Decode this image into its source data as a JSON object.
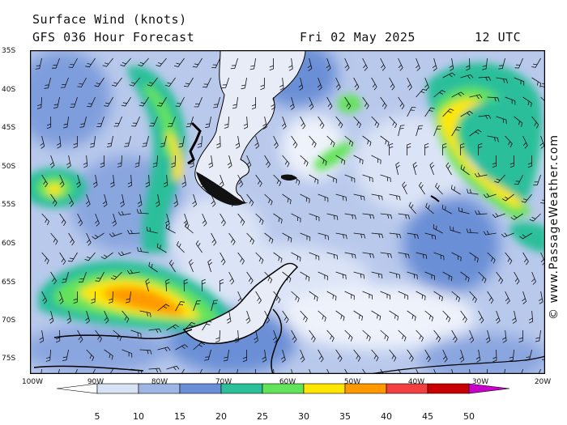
{
  "header": {
    "title": "Surface Wind (knots)",
    "subtitle": "GFS 036 Hour Forecast",
    "date": "Fri 02 May 2025",
    "time": "12 UTC"
  },
  "axes": {
    "lat_labels": [
      "35S",
      "40S",
      "45S",
      "50S",
      "55S",
      "60S",
      "65S",
      "70S",
      "75S"
    ],
    "lon_labels": [
      "100W",
      "90W",
      "80W",
      "70W",
      "60W",
      "50W",
      "40W",
      "30W",
      "20W"
    ]
  },
  "legend": {
    "labels": [
      "5",
      "10",
      "15",
      "20",
      "25",
      "30",
      "35",
      "40",
      "45",
      "50"
    ],
    "colors": [
      "#ffffff",
      "#d7e2f4",
      "#9db6e3",
      "#6b8fd6",
      "#2cbf9a",
      "#63e35a",
      "#ffe600",
      "#ff9900",
      "#f24040",
      "#c80000",
      "#c800c8"
    ]
  },
  "credit": "© www.PassageWeather.com",
  "map_colors": {
    "ocean_base": "#b9c9ec",
    "land": "#e8ecf6",
    "coast": "#000000"
  }
}
